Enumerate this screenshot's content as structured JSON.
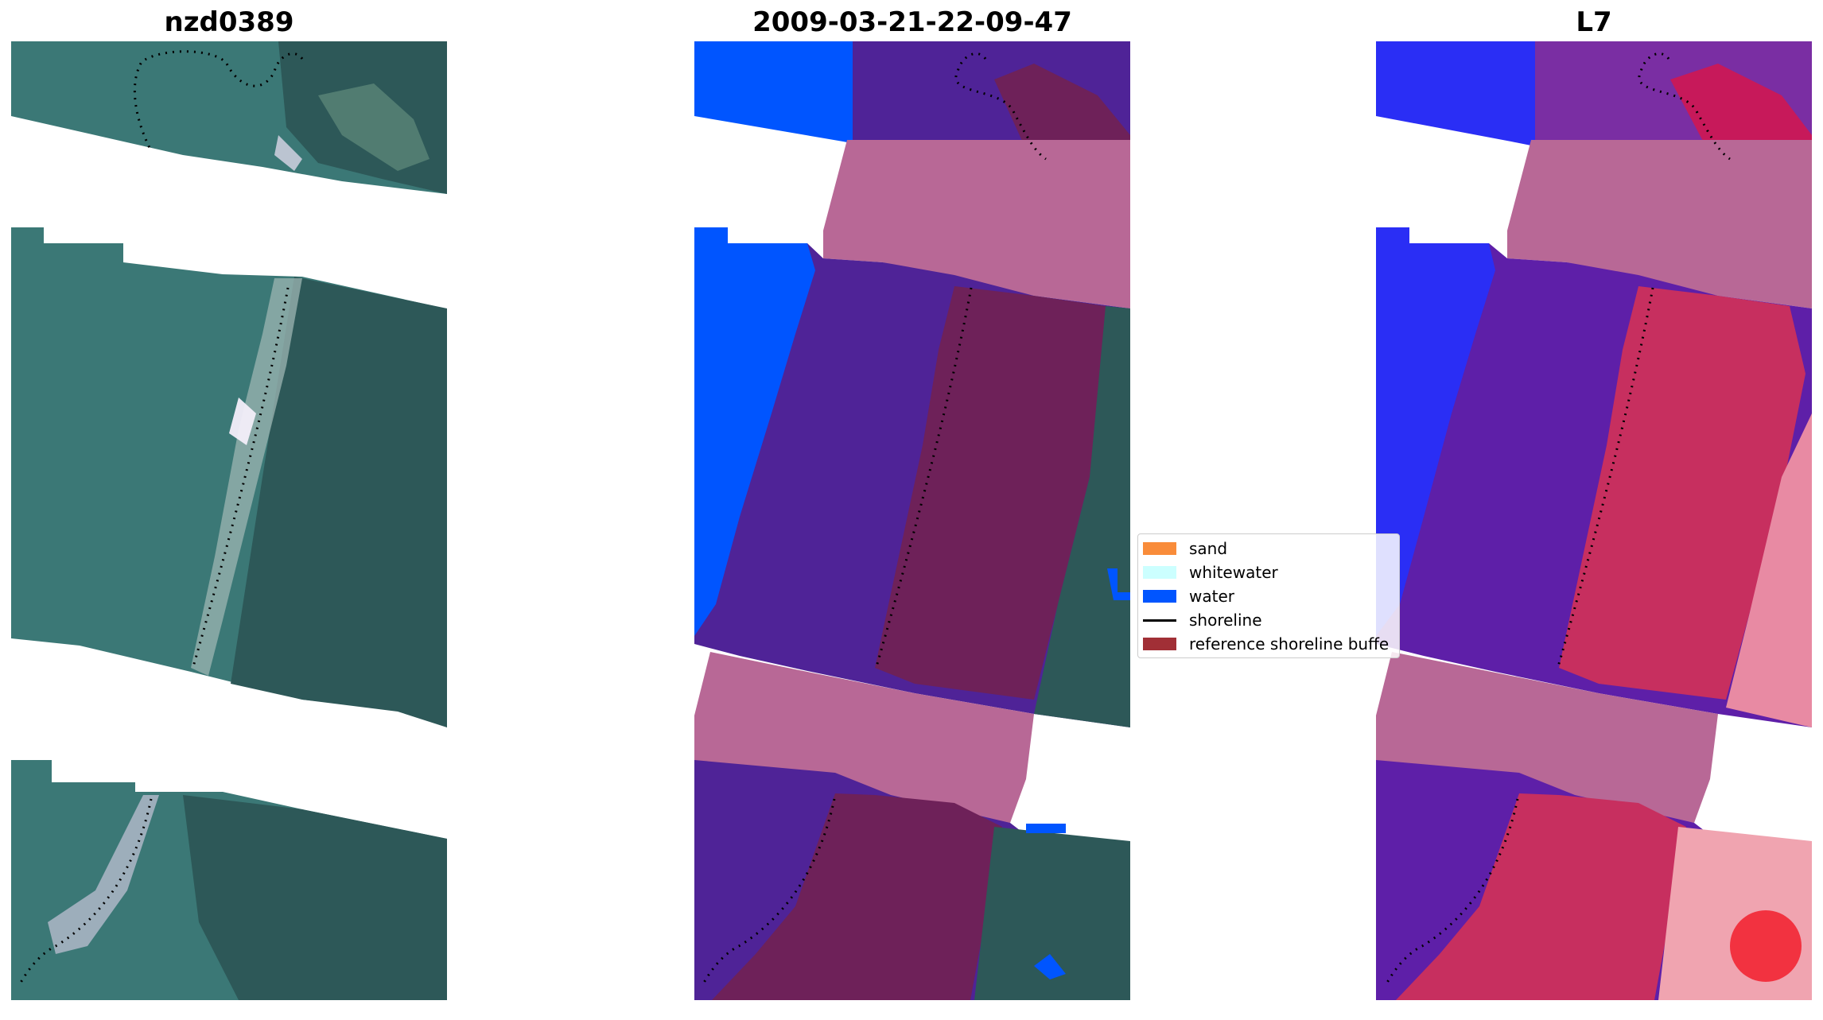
{
  "panels": {
    "rgb_title": "nzd0389",
    "classified_title": "2009-03-21-22-09-47",
    "index_title": "L7"
  },
  "legend": {
    "items": [
      {
        "label": "sand",
        "color": "#f98c3a",
        "kind": "patch"
      },
      {
        "label": "whitewater",
        "color": "#ccffff",
        "kind": "patch"
      },
      {
        "label": "water",
        "color": "#0055ff",
        "kind": "patch"
      },
      {
        "label": "shoreline",
        "color": "#000000",
        "kind": "line"
      },
      {
        "label": "reference shoreline buffe",
        "color": "#a12f36",
        "kind": "patch"
      }
    ]
  },
  "colors": {
    "water_rgb": "#3b7876",
    "land_rgb": "#2d5858",
    "water_class": "#0055ff",
    "nodata_band": "#b86896",
    "buffer_class": "#6e2159",
    "land_class": "#4f2397",
    "index_water": "#2a2ef5",
    "index_mid": "#5e1fa8",
    "index_land": "#c72f5f",
    "index_pale": "#e88aa3"
  }
}
